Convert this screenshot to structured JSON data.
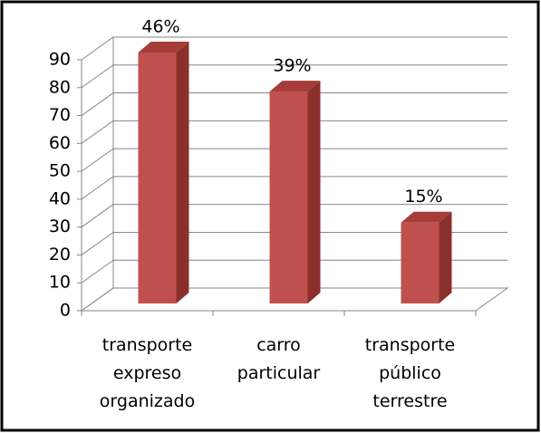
{
  "chart_data": {
    "type": "bar3d",
    "categories": [
      "transporte expreso organizado",
      "carro particular",
      "transporte público terrestre"
    ],
    "values": [
      90,
      76,
      29
    ],
    "value_labels": [
      "46%",
      "39%",
      "15%"
    ],
    "color": "#c0504d",
    "ylim": [
      0,
      90
    ],
    "yticks": [
      0,
      10,
      20,
      30,
      40,
      50,
      60,
      70,
      80,
      90
    ],
    "grid": true
  }
}
